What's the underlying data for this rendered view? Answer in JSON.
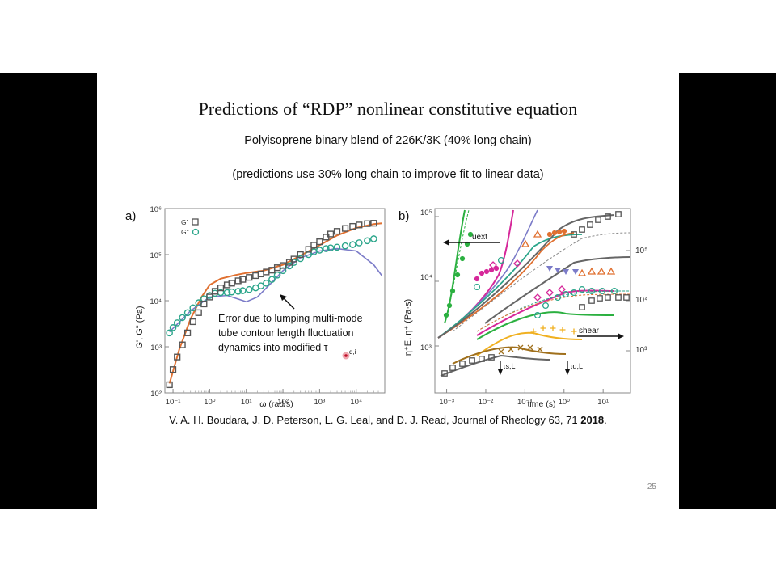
{
  "slide": {
    "title": "Predictions of “RDP” nonlinear constitutive equation",
    "subtitle": "Polyisoprene binary blend of 226K/3K (40% long chain)",
    "note": "(predictions use 30% long chain to improve fit to linear data)",
    "citation_text": "V. A. H. Boudara, J. D. Peterson, L. G. Leal, and D. J. Read, Journal of Rheology 63, 71 ",
    "citation_year": "2018",
    "citation_end": ".",
    "page_number": "25"
  },
  "panel_a": {
    "label": "a)",
    "ylabel": "G', G\" (Pa)",
    "xlabel": "ω (rad/s)",
    "legend": [
      "G'",
      "G\""
    ],
    "annotation_lines": [
      "Error due to lumping multi-mode",
      "tube contour length fluctuation",
      "dynamics into modified τ"
    ],
    "annotation_sub": "d,i",
    "x_ticks": [
      "10⁻¹",
      "10⁰",
      "10¹",
      "10²",
      "10³",
      "10⁴"
    ],
    "y_ticks": [
      "10²",
      "10³",
      "10⁴",
      "10⁵",
      "10⁶"
    ]
  },
  "panel_b": {
    "label": "b)",
    "ylabel": "η⁺E, η⁺ (Pa·s)",
    "xlabel": "time (s)",
    "x_ticks": [
      "10⁻³",
      "10⁻²",
      "10⁻¹",
      "10⁰",
      "10¹"
    ],
    "y_ticks_left": [
      "10³",
      "10⁴",
      "10⁵"
    ],
    "y_ticks_right": [
      "10³",
      "10⁴",
      "10⁵"
    ],
    "uext_label": "uext",
    "shear_label": "shear",
    "tau_s_label": "τs,L",
    "tau_d_label": "τd,L"
  },
  "chart_data": [
    {
      "type": "scatter",
      "xscale": "log",
      "yscale": "log",
      "xlabel": "ω (rad/s)",
      "ylabel": "G', G\" (Pa)",
      "xlim": [
        0.06,
        60000
      ],
      "ylim": [
        100,
        1000000
      ],
      "series": [
        {
          "name": "G'",
          "x": [
            0.08,
            0.1,
            0.13,
            0.18,
            0.25,
            0.35,
            0.5,
            0.7,
            1,
            1.4,
            2,
            3,
            4,
            6,
            8,
            12,
            18,
            25,
            35,
            50,
            70,
            100,
            150,
            200,
            300,
            500,
            700,
            1000,
            1500,
            2000,
            3000,
            5000,
            8000,
            12000,
            20000,
            30000
          ],
          "y": [
            150,
            320,
            600,
            1100,
            2000,
            3500,
            5500,
            8500,
            12000,
            16000,
            19000,
            22000,
            24000,
            27000,
            29000,
            32000,
            35000,
            38000,
            42000,
            46000,
            52000,
            58000,
            68000,
            80000,
            100000,
            130000,
            160000,
            190000,
            240000,
            280000,
            320000,
            370000,
            410000,
            440000,
            470000,
            480000
          ]
        },
        {
          "name": "G\"",
          "x": [
            0.08,
            0.1,
            0.13,
            0.18,
            0.25,
            0.35,
            0.5,
            0.7,
            1,
            1.4,
            2,
            3,
            4,
            6,
            8,
            12,
            18,
            25,
            35,
            50,
            70,
            100,
            150,
            200,
            300,
            500,
            700,
            1000,
            1500,
            2000,
            3000,
            5000,
            8000,
            12000,
            20000,
            30000
          ],
          "y": [
            2000,
            2600,
            3300,
            4300,
            5500,
            7000,
            9000,
            11000,
            13000,
            14500,
            15000,
            15000,
            15500,
            16000,
            16500,
            17500,
            19000,
            21000,
            24000,
            29000,
            36000,
            45000,
            57000,
            68000,
            82000,
            100000,
            115000,
            125000,
            135000,
            140000,
            145000,
            155000,
            165000,
            180000,
            200000,
            220000
          ]
        }
      ]
    },
    {
      "type": "line",
      "xscale": "log",
      "yscale": "log",
      "xlabel": "time (s)",
      "ylabel": "η⁺E, η⁺ (Pa·s)",
      "xlim": [
        0.0005,
        50
      ],
      "series": []
    }
  ]
}
